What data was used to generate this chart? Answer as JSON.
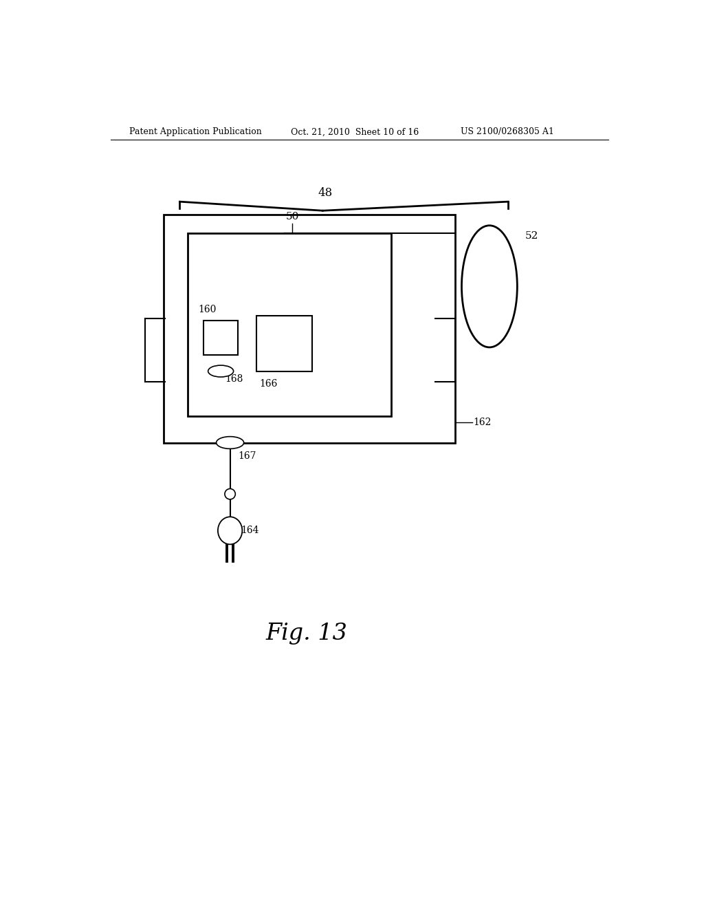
{
  "background_color": "#ffffff",
  "header_left": "Patent Application Publication",
  "header_center": "Oct. 21, 2010  Sheet 10 of 16",
  "header_right": "US 2100/0268305 A1",
  "fig_label": "Fig. 13",
  "label_48": "48",
  "label_50": "50",
  "label_52": "52",
  "label_160": "160",
  "label_162": "162",
  "label_164": "164",
  "label_166": "166",
  "label_167": "167",
  "label_168": "168"
}
